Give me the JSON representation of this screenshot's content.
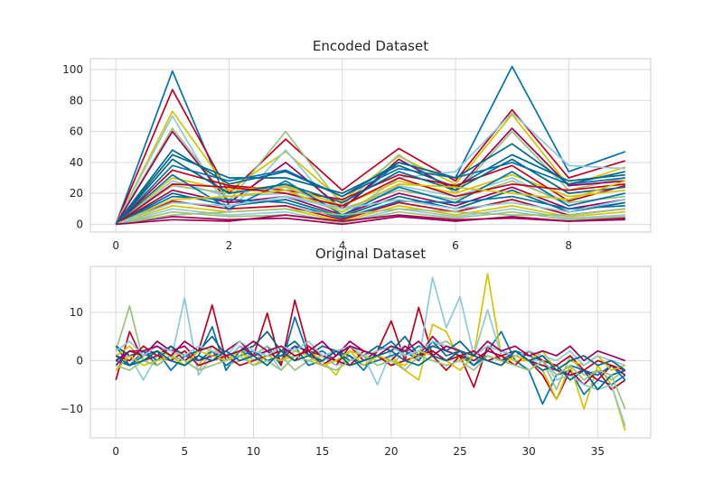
{
  "chart_data": [
    {
      "type": "line",
      "title": "Encoded Dataset",
      "xlabel": "",
      "ylabel": "",
      "xlim": [
        -0.45,
        9.45
      ],
      "ylim": [
        -5,
        107
      ],
      "xticks": [
        0,
        2,
        4,
        6,
        8
      ],
      "yticks": [
        0,
        20,
        40,
        60,
        80,
        100
      ],
      "grid": true,
      "legend": "none",
      "palette": [
        "#0072B2",
        "#C00020",
        "#D4C400",
        "#8FC8D8",
        "#9AC27C",
        "#A0005A",
        "#00688B"
      ],
      "x": [
        0,
        1,
        2,
        3,
        4,
        5,
        6,
        7,
        8,
        9
      ],
      "series": [
        {
          "values": [
            0,
            99,
            12,
            18,
            10,
            40,
            30,
            102,
            34,
            47
          ]
        },
        {
          "values": [
            0,
            87,
            20,
            55,
            22,
            49,
            28,
            74,
            30,
            41
          ]
        },
        {
          "values": [
            0,
            73,
            22,
            47,
            15,
            44,
            26,
            71,
            25,
            37
          ]
        },
        {
          "values": [
            0,
            70,
            8,
            48,
            5,
            30,
            34,
            72,
            38,
            36
          ]
        },
        {
          "values": [
            0,
            62,
            15,
            60,
            12,
            45,
            20,
            60,
            22,
            30
          ]
        },
        {
          "values": [
            0,
            60,
            14,
            40,
            10,
            42,
            22,
            62,
            25,
            28
          ]
        },
        {
          "values": [
            0,
            45,
            30,
            30,
            20,
            38,
            24,
            45,
            28,
            32
          ]
        },
        {
          "values": [
            0,
            38,
            28,
            35,
            18,
            36,
            30,
            40,
            26,
            30
          ]
        },
        {
          "values": [
            0,
            35,
            25,
            22,
            16,
            32,
            25,
            38,
            15,
            25
          ]
        },
        {
          "values": [
            0,
            30,
            22,
            25,
            12,
            28,
            20,
            32,
            18,
            22
          ]
        },
        {
          "values": [
            0,
            28,
            18,
            20,
            8,
            25,
            18,
            30,
            12,
            20
          ]
        },
        {
          "values": [
            0,
            25,
            20,
            24,
            10,
            22,
            16,
            28,
            14,
            18
          ]
        },
        {
          "values": [
            0,
            22,
            14,
            18,
            6,
            20,
            12,
            24,
            10,
            16
          ]
        },
        {
          "values": [
            0,
            20,
            12,
            16,
            5,
            18,
            10,
            22,
            8,
            14
          ]
        },
        {
          "values": [
            0,
            18,
            16,
            14,
            4,
            15,
            14,
            18,
            10,
            12
          ]
        },
        {
          "values": [
            0,
            15,
            10,
            12,
            3,
            14,
            8,
            16,
            6,
            10
          ]
        },
        {
          "values": [
            0,
            12,
            8,
            10,
            2,
            12,
            6,
            12,
            5,
            8
          ]
        },
        {
          "values": [
            0,
            10,
            6,
            8,
            1,
            10,
            5,
            10,
            4,
            6
          ]
        },
        {
          "values": [
            0,
            8,
            5,
            6,
            1,
            8,
            4,
            8,
            3,
            5
          ]
        },
        {
          "values": [
            0,
            5,
            3,
            4,
            0,
            5,
            2,
            5,
            2,
            3
          ]
        },
        {
          "values": [
            0,
            42,
            20,
            26,
            14,
            34,
            22,
            42,
            20,
            24
          ]
        },
        {
          "values": [
            0,
            32,
            10,
            28,
            6,
            24,
            14,
            34,
            12,
            20
          ]
        },
        {
          "values": [
            0,
            26,
            24,
            20,
            12,
            30,
            18,
            26,
            22,
            26
          ]
        },
        {
          "values": [
            0,
            16,
            18,
            22,
            8,
            26,
            24,
            20,
            16,
            28
          ]
        },
        {
          "values": [
            0,
            14,
            12,
            18,
            10,
            16,
            10,
            14,
            8,
            16
          ]
        },
        {
          "values": [
            0,
            6,
            8,
            10,
            6,
            10,
            8,
            6,
            6,
            10
          ]
        },
        {
          "values": [
            0,
            3,
            2,
            6,
            2,
            6,
            3,
            4,
            2,
            4
          ]
        },
        {
          "values": [
            0,
            48,
            26,
            34,
            18,
            40,
            30,
            52,
            26,
            34
          ]
        }
      ]
    },
    {
      "type": "line",
      "title": "Original Dataset",
      "xlabel": "",
      "ylabel": "",
      "xlim": [
        -1.85,
        38.85
      ],
      "ylim": [
        -16,
        19.5
      ],
      "xticks": [
        0,
        5,
        10,
        15,
        20,
        25,
        30,
        35
      ],
      "yticks": [
        -10,
        0,
        10
      ],
      "ytick_labels": [
        "−10",
        "0",
        "10"
      ],
      "grid": true,
      "legend": "none",
      "palette": [
        "#0072B2",
        "#C00020",
        "#D4C400",
        "#8FC8D8",
        "#9AC27C",
        "#A0005A",
        "#00688B"
      ],
      "series": [
        {
          "values": [
            3,
            -1,
            2,
            -1,
            1,
            -1,
            1,
            7,
            -2,
            2,
            1,
            3,
            -1,
            9,
            1,
            2,
            0,
            1,
            -2,
            2,
            4,
            1,
            3,
            2,
            0,
            1,
            -1,
            2,
            6,
            0,
            -2,
            -9,
            -3,
            -2,
            -7,
            -4,
            -5,
            -3
          ]
        },
        {
          "values": [
            -4,
            6,
            0,
            1,
            3,
            0,
            2,
            11.5,
            0,
            3,
            1,
            9.8,
            -1,
            12.5,
            2,
            1,
            -1,
            3,
            0,
            2,
            8.2,
            0,
            11,
            1,
            -2,
            1,
            -5.5,
            3,
            0,
            1,
            0,
            -3,
            -8,
            -2,
            -5,
            -2,
            -6,
            -4
          ]
        },
        {
          "values": [
            1,
            3,
            0,
            2,
            1,
            2,
            -1,
            3,
            0,
            2,
            0,
            2,
            0,
            1,
            2,
            0,
            -3,
            2,
            1,
            0,
            1,
            -2,
            -4,
            7.5,
            6,
            0,
            1,
            18,
            1,
            0,
            0,
            -2,
            -8,
            -1,
            -10,
            -1,
            -5,
            -14.5
          ]
        },
        {
          "values": [
            0,
            1,
            -4,
            1,
            0,
            13,
            -3,
            1,
            0,
            3,
            0,
            2,
            -2,
            1,
            0,
            1,
            -1,
            0,
            1,
            -5,
            2,
            3,
            0,
            17.2,
            6.8,
            13.2,
            1,
            10.5,
            1,
            2,
            0,
            0,
            -4,
            -3,
            -5,
            -6,
            -5,
            -13.5
          ]
        },
        {
          "values": [
            2,
            11.3,
            0,
            -1,
            1,
            0,
            -2,
            2,
            -1,
            0,
            1,
            3,
            1,
            -2,
            0,
            1,
            2,
            -1,
            0,
            1,
            -1,
            2,
            0,
            3,
            4,
            2,
            0,
            1,
            0,
            -1,
            -2,
            0,
            -6,
            1,
            -3,
            -2,
            -4,
            -2
          ]
        },
        {
          "values": [
            -1,
            2,
            1,
            4,
            2,
            3,
            0,
            1,
            2,
            4,
            1,
            2,
            0,
            3,
            2,
            -1,
            1,
            4,
            2,
            1,
            0,
            3,
            1,
            5,
            2,
            1,
            0,
            2,
            1,
            2,
            0,
            -1,
            -2,
            -3,
            -2,
            -4,
            -1,
            -3
          ]
        },
        {
          "values": [
            3,
            1,
            2,
            0,
            3,
            1,
            2,
            5,
            1,
            2,
            3,
            6,
            2,
            4,
            1,
            3,
            2,
            0,
            1,
            3,
            2,
            5,
            1,
            3,
            2,
            4,
            1,
            3,
            2,
            1,
            0,
            -2,
            -1,
            -4,
            -2,
            -6,
            -3,
            -2
          ]
        },
        {
          "values": [
            0,
            -1,
            1,
            2,
            -2,
            1,
            0,
            2,
            -1,
            1,
            2,
            0,
            1,
            3,
            -1,
            0,
            2,
            1,
            -1,
            0,
            1,
            2,
            0,
            4,
            1,
            2,
            -1,
            1,
            0,
            2,
            1,
            0,
            -3,
            -1,
            -2,
            -3,
            -1,
            -4
          ]
        },
        {
          "values": [
            1,
            0,
            3,
            1,
            0,
            2,
            -1,
            0,
            1,
            -1,
            0,
            1,
            2,
            0,
            3,
            1,
            0,
            -1,
            2,
            1,
            -1,
            0,
            1,
            2,
            0,
            1,
            2,
            0,
            1,
            -1,
            2,
            0,
            -1,
            1,
            -2,
            0,
            -1,
            -2
          ]
        },
        {
          "values": [
            -2,
            1,
            -1,
            0,
            1,
            -1,
            2,
            1,
            0,
            2,
            -1,
            1,
            0,
            2,
            1,
            -1,
            0,
            2,
            -1,
            1,
            0,
            -1,
            2,
            1,
            0,
            -2,
            1,
            0,
            -1,
            1,
            0,
            2,
            -2,
            0,
            -1,
            1,
            -2,
            -1
          ]
        },
        {
          "values": [
            2,
            4,
            1,
            3,
            2,
            1,
            3,
            2,
            1,
            4,
            2,
            1,
            3,
            2,
            4,
            1,
            2,
            3,
            1,
            2,
            3,
            1,
            2,
            4,
            3,
            2,
            1,
            3,
            2,
            1,
            2,
            1,
            0,
            2,
            -1,
            1,
            0,
            -1
          ]
        },
        {
          "values": [
            -1,
            -2,
            0,
            -1,
            1,
            0,
            -2,
            -1,
            0,
            1,
            -1,
            0,
            -2,
            1,
            0,
            -1,
            -2,
            0,
            1,
            -1,
            0,
            -2,
            1,
            0,
            -1,
            0,
            -2,
            1,
            0,
            -1,
            -2,
            0,
            -3,
            -1,
            -4,
            -2,
            -3,
            -10
          ]
        },
        {
          "values": [
            0,
            2,
            2,
            3,
            1,
            4,
            2,
            3,
            1,
            2,
            4,
            2,
            3,
            1,
            2,
            4,
            1,
            3,
            2,
            1,
            3,
            2,
            4,
            1,
            3,
            2,
            1,
            4,
            2,
            3,
            1,
            2,
            1,
            3,
            0,
            2,
            1,
            0
          ]
        },
        {
          "values": [
            1,
            -1,
            0,
            2,
            0,
            -1,
            1,
            0,
            2,
            0,
            1,
            -1,
            2,
            0,
            1,
            0,
            2,
            -1,
            0,
            1,
            2,
            0,
            -1,
            1,
            0,
            2,
            1,
            0,
            -1,
            2,
            0,
            1,
            -2,
            0,
            1,
            -1,
            0,
            -2
          ]
        }
      ]
    }
  ]
}
